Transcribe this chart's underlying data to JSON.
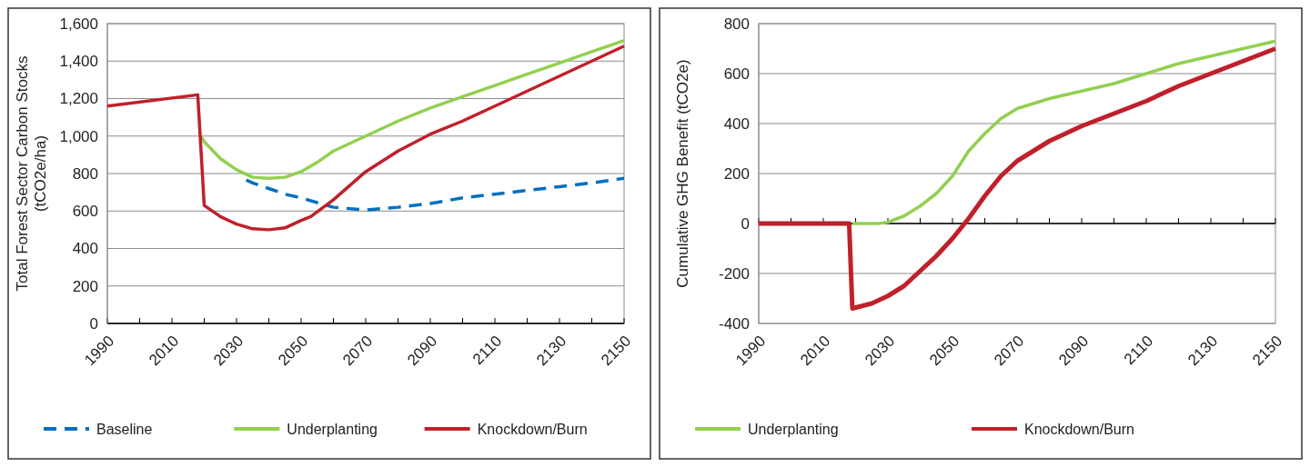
{
  "chart_data": [
    {
      "type": "line",
      "ylabel": "Total Forest Sector Carbon Stocks\n(tCO2e/ha)",
      "xlim": [
        1990,
        2150
      ],
      "ylim": [
        0,
        1600
      ],
      "xticks": [
        1990,
        {
          "value": 2000,
          "label": null
        },
        2010,
        {
          "value": 2020,
          "label": null
        },
        2030,
        {
          "value": 2040,
          "label": null
        },
        2050,
        {
          "value": 2060,
          "label": null
        },
        2070,
        {
          "value": 2080,
          "label": null
        },
        2090,
        {
          "value": 2100,
          "label": null
        },
        2110,
        {
          "value": 2120,
          "label": null
        },
        2130,
        {
          "value": 2140,
          "label": null
        },
        2150
      ],
      "yticks": [
        0,
        200,
        400,
        600,
        800,
        {
          "value": 1000,
          "label": "1,000"
        },
        {
          "value": 1200,
          "label": "1,200"
        },
        {
          "value": 1400,
          "label": "1,400"
        },
        {
          "value": 1600,
          "label": "1,600"
        }
      ],
      "grid": "y",
      "legend": "bottom",
      "series": [
        {
          "name": "Baseline",
          "color": "#0070c0",
          "line_style": "dashed",
          "x": [
            2033,
            2035,
            2040,
            2045,
            2050,
            2060,
            2070,
            2080,
            2090,
            2100,
            2110,
            2120,
            2130,
            2140,
            2150
          ],
          "values": [
            765,
            750,
            720,
            690,
            670,
            620,
            605,
            620,
            640,
            670,
            690,
            710,
            730,
            750,
            775
          ]
        },
        {
          "name": "Underplanting",
          "color": "#92d050",
          "line_style": "solid",
          "x": [
            2019,
            2020,
            2025,
            2030,
            2035,
            2040,
            2045,
            2050,
            2055,
            2060,
            2070,
            2080,
            2090,
            2100,
            2110,
            2120,
            2130,
            2140,
            2150
          ],
          "values": [
            1000,
            970,
            880,
            820,
            780,
            775,
            780,
            810,
            860,
            920,
            1000,
            1080,
            1150,
            1210,
            1270,
            1330,
            1390,
            1450,
            1510
          ]
        },
        {
          "name": "Knockdown/Burn",
          "color": "#c0202a",
          "line_style": "solid",
          "x": [
            1990,
            2018,
            2020,
            2025,
            2030,
            2035,
            2040,
            2045,
            2050,
            2053,
            2060,
            2070,
            2080,
            2090,
            2100,
            2110,
            2120,
            2130,
            2140,
            2150
          ],
          "values": [
            1160,
            1220,
            630,
            570,
            530,
            505,
            500,
            510,
            550,
            570,
            660,
            810,
            920,
            1010,
            1080,
            1160,
            1240,
            1320,
            1400,
            1480
          ]
        }
      ]
    },
    {
      "type": "line",
      "ylabel": "Cumulative GHG Benefit (tCO2e)",
      "xlim": [
        1990,
        2150
      ],
      "ylim": [
        -400,
        800
      ],
      "xticks": [
        1990,
        {
          "value": 2000,
          "label": null
        },
        2010,
        {
          "value": 2020,
          "label": null
        },
        2030,
        {
          "value": 2040,
          "label": null
        },
        2050,
        {
          "value": 2060,
          "label": null
        },
        2070,
        {
          "value": 2080,
          "label": null
        },
        2090,
        {
          "value": 2100,
          "label": null
        },
        2110,
        {
          "value": 2120,
          "label": null
        },
        2130,
        {
          "value": 2140,
          "label": null
        },
        2150
      ],
      "yticks": [
        -400,
        -200,
        0,
        200,
        400,
        600,
        800
      ],
      "grid": "y",
      "legend": "bottom",
      "series": [
        {
          "name": "Underplanting",
          "color": "#92d050",
          "line_style": "solid",
          "x": [
            2019,
            2027,
            2030,
            2035,
            2040,
            2045,
            2050,
            2055,
            2060,
            2065,
            2070,
            2080,
            2090,
            2100,
            2110,
            2120,
            2130,
            2140,
            2150
          ],
          "values": [
            0,
            0,
            5,
            30,
            70,
            120,
            190,
            290,
            360,
            420,
            460,
            500,
            530,
            560,
            600,
            640,
            670,
            700,
            730
          ]
        },
        {
          "name": "Knockdown/Burn",
          "color": "#c0202a",
          "line_style": "solid",
          "x": [
            1990,
            2018,
            2019,
            2025,
            2030,
            2035,
            2040,
            2045,
            2050,
            2055,
            2060,
            2065,
            2070,
            2080,
            2090,
            2100,
            2110,
            2120,
            2130,
            2140,
            2150
          ],
          "values": [
            0,
            0,
            -340,
            -320,
            -290,
            -250,
            -190,
            -130,
            -60,
            20,
            110,
            190,
            250,
            330,
            390,
            440,
            490,
            550,
            600,
            650,
            700
          ]
        }
      ]
    }
  ]
}
